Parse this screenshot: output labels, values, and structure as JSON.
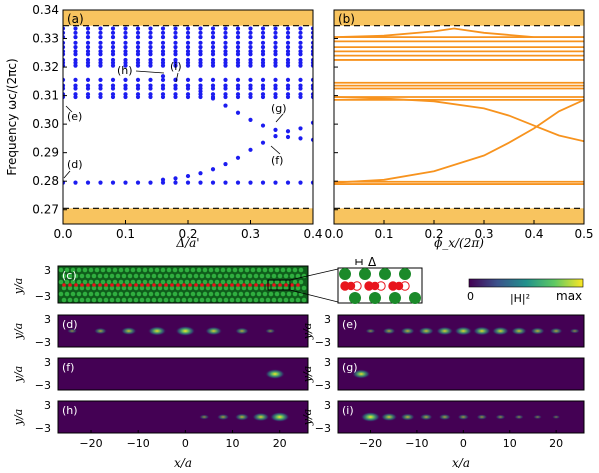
{
  "colors": {
    "band": "#f8c45f",
    "dots": "#1c1cf0",
    "lines": "#f7931e",
    "map_bg": "#440154",
    "map_low": "#2a788e",
    "map_mid": "#22a884",
    "map_high": "#fde725",
    "photonic_green": "#1b8a2a",
    "defect_red": "#e8141c"
  },
  "panel_a": {
    "tag": "(a)",
    "ylabel": "Frequency ωc/(2πc)",
    "xlabel": "Δ/a'",
    "yticks": [
      "0.27",
      "0.28",
      "0.29",
      "0.30",
      "0.31",
      "0.32",
      "0.33",
      "0.34"
    ],
    "xticks": [
      "0.0",
      "0.1",
      "0.2",
      "0.3",
      "0.4"
    ],
    "point_labels": [
      "(h)",
      "(i)",
      "(e)",
      "(g)",
      "(d)",
      "(f)"
    ]
  },
  "panel_b": {
    "tag": "(b)",
    "xlabel": "ϕ_x/(2π)",
    "xticks": [
      "0.0",
      "0.1",
      "0.2",
      "0.3",
      "0.4",
      "0.5"
    ]
  },
  "panel_c": {
    "tag": "(c)",
    "ylabel": "y/a",
    "yticks": [
      "3",
      "−3"
    ],
    "inset_label": "Δ"
  },
  "colorbar": {
    "min_label": "0",
    "mid_label": "|H|²",
    "max_label": "max"
  },
  "mode_panels": {
    "tags": [
      "(d)",
      "(e)",
      "(f)",
      "(g)",
      "(h)",
      "(i)"
    ],
    "ylabel": "y/a",
    "yticks": [
      "3",
      "−3"
    ],
    "xlabel": "x/a",
    "xticks": [
      "−20",
      "−10",
      "0",
      "10",
      "20"
    ]
  },
  "chart_data": [
    {
      "type": "scatter",
      "panel": "(a)",
      "xlabel": "Δ/a'",
      "ylabel": "Frequency ωc/(2πc)",
      "xlim": [
        0,
        0.4
      ],
      "ylim": [
        0.265,
        0.34
      ],
      "gap_edges": [
        0.2705,
        0.3345
      ],
      "flat_bands": [
        0.2795,
        0.3095,
        0.3105,
        0.3125,
        0.3135,
        0.3155,
        0.3205,
        0.3215,
        0.3225,
        0.3245,
        0.3255,
        0.327,
        0.3285,
        0.3305,
        0.332,
        0.3335
      ],
      "upper_branch": {
        "x": [
          0.16,
          0.18,
          0.2,
          0.22,
          0.24,
          0.26,
          0.28,
          0.3,
          0.32,
          0.34,
          0.36,
          0.38,
          0.4
        ],
        "y": [
          0.3168,
          0.3155,
          0.3135,
          0.3115,
          0.309,
          0.3065,
          0.304,
          0.3015,
          0.2995,
          0.298,
          0.2975,
          0.2985,
          0.3005
        ]
      },
      "lower_branch": {
        "x": [
          0.16,
          0.18,
          0.2,
          0.22,
          0.24,
          0.26,
          0.28,
          0.3,
          0.32,
          0.34,
          0.36,
          0.38,
          0.4
        ],
        "y": [
          0.2805,
          0.281,
          0.2818,
          0.2828,
          0.2842,
          0.286,
          0.2882,
          0.291,
          0.2935,
          0.2958,
          0.2955,
          0.295,
          0.2945
        ]
      },
      "xticks": [
        0,
        0.1,
        0.2,
        0.3,
        0.4
      ]
    },
    {
      "type": "line",
      "panel": "(b)",
      "xlabel": "ϕ_x/(2π)",
      "xlim": [
        0,
        0.5
      ],
      "ylim": [
        0.265,
        0.34
      ],
      "gap_edges": [
        0.2705,
        0.3345
      ],
      "flat_bands": [
        0.279,
        0.2798,
        0.3085,
        0.3095,
        0.3125,
        0.3135,
        0.3145,
        0.3225,
        0.324,
        0.3255,
        0.327,
        0.329,
        0.3305
      ],
      "crossing_curves": [
        {
          "x": [
            0,
            0.1,
            0.2,
            0.3,
            0.35,
            0.4,
            0.45,
            0.5
          ],
          "y": [
            0.2795,
            0.2805,
            0.2835,
            0.289,
            0.2935,
            0.2985,
            0.3045,
            0.3085
          ]
        },
        {
          "x": [
            0,
            0.1,
            0.2,
            0.3,
            0.35,
            0.4,
            0.45,
            0.5
          ],
          "y": [
            0.3095,
            0.309,
            0.308,
            0.3055,
            0.303,
            0.2995,
            0.296,
            0.294
          ]
        },
        {
          "x": [
            0,
            0.1,
            0.2,
            0.24,
            0.3,
            0.4,
            0.5
          ],
          "y": [
            0.3305,
            0.331,
            0.3325,
            0.3335,
            0.332,
            0.3305,
            0.3305
          ]
        }
      ],
      "xticks": [
        0,
        0.1,
        0.2,
        0.3,
        0.4,
        0.5
      ]
    },
    {
      "type": "heatmap",
      "panels": [
        "(d)",
        "(e)",
        "(f)",
        "(g)",
        "(h)",
        "(i)"
      ],
      "xlabel": "x/a",
      "ylabel": "y/a",
      "xlim": [
        -27,
        26
      ],
      "ylim": [
        -3,
        3
      ],
      "modes": {
        "(d)": {
          "centers": [
            -24,
            -18,
            -12,
            -6,
            0,
            6,
            12,
            18
          ],
          "weights": [
            0.3,
            0.5,
            0.7,
            0.9,
            1.0,
            0.8,
            0.55,
            0.3
          ]
        },
        "(e)": {
          "centers": [
            -20,
            -16,
            -12,
            -8,
            -4,
            0,
            4,
            8,
            12,
            16,
            20,
            24
          ],
          "weights": [
            0.3,
            0.5,
            0.6,
            0.7,
            0.8,
            0.85,
            0.85,
            0.8,
            0.7,
            0.6,
            0.5,
            0.3
          ]
        },
        "(f)": {
          "centers": [
            19
          ],
          "weights": [
            1.0
          ]
        },
        "(g)": {
          "centers": [
            -22
          ],
          "weights": [
            0.9
          ]
        },
        "(h)": {
          "centers": [
            4,
            8,
            12,
            16,
            20
          ],
          "weights": [
            0.3,
            0.45,
            0.6,
            0.8,
            1.0
          ]
        },
        "(i)": {
          "centers": [
            -20,
            -16,
            -12,
            -8,
            -4,
            0,
            4,
            8,
            12,
            16,
            20
          ],
          "weights": [
            1.0,
            0.75,
            0.6,
            0.5,
            0.45,
            0.4,
            0.35,
            0.3,
            0.25,
            0.2,
            0.15
          ]
        }
      }
    }
  ]
}
